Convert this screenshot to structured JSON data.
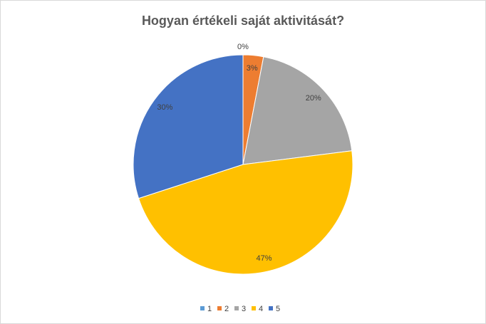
{
  "chart_data": {
    "type": "pie",
    "title": "Hogyan értékeli saját aktivitását?",
    "categories": [
      "1",
      "2",
      "3",
      "4",
      "5"
    ],
    "values": [
      0,
      3,
      20,
      47,
      30
    ],
    "value_labels": [
      "0%",
      "3%",
      "20%",
      "47%",
      "30%"
    ],
    "colors": [
      "#5b9bd5",
      "#ed7d31",
      "#a5a5a5",
      "#ffc000",
      "#4472c4"
    ],
    "legend": "bottom"
  }
}
